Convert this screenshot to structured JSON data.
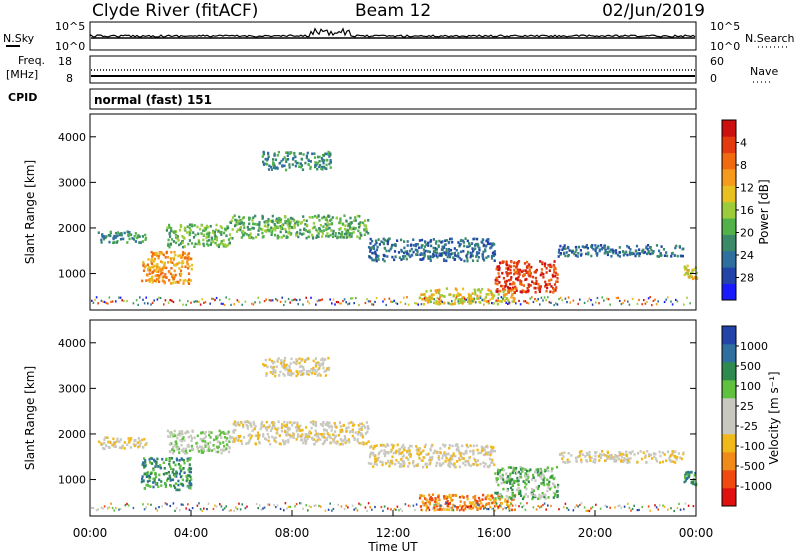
{
  "header": {
    "title": "Clyde River (fitACF)",
    "beam": "Beam 12",
    "date": "02/Jun/2019"
  },
  "panels": {
    "sky": {
      "left_label": "N.Sky",
      "left_ticks": [
        "10^5",
        "10^0"
      ],
      "right_ticks": [
        "10^5",
        "10^0"
      ],
      "right_label": "N.Search"
    },
    "freq": {
      "left_label_1": "Freq.",
      "left_label_2": "[MHz]",
      "left_ticks": [
        "18",
        "8"
      ],
      "right_ticks": [
        "60",
        "0"
      ],
      "right_label": "Nave"
    },
    "cpid": {
      "label": "CPID",
      "value": "normal (fast) 151"
    }
  },
  "colors": {
    "power": [
      "#1a1aff",
      "#2244a8",
      "#2f6fa0",
      "#3a8a6a",
      "#52b24a",
      "#9ccc3a",
      "#e8c020",
      "#f59a1a",
      "#f06a10",
      "#e43a10",
      "#cc1010"
    ],
    "velocity": [
      "#e01010",
      "#f04a10",
      "#f08a18",
      "#f0b818",
      "#c8c8c0",
      "#c8c8c0",
      "#60c040",
      "#2f8a50",
      "#2f6fa0",
      "#2244a8"
    ]
  },
  "chart_data": [
    {
      "type": "heatmap",
      "name_hint": "power-panel",
      "ylabel": "Slant Range [km]",
      "yticks": [
        "1000",
        "2000",
        "3000",
        "4000"
      ],
      "ylim": [
        200,
        4500
      ],
      "xlim": [
        0,
        24
      ],
      "colorbar_label": "Power [dB]",
      "colorbar_ticks": [
        "4",
        "8",
        "12",
        "16",
        "20",
        "24",
        "28"
      ],
      "regions": [
        {
          "x0": 0.3,
          "x1": 2.2,
          "y0": 1700,
          "y1": 1950,
          "level": 3
        },
        {
          "x0": 2.0,
          "x1": 4.0,
          "y0": 800,
          "y1": 1500,
          "level": 7
        },
        {
          "x0": 3.0,
          "x1": 5.5,
          "y0": 1600,
          "y1": 2100,
          "level": 4
        },
        {
          "x0": 5.5,
          "x1": 11.0,
          "y0": 1800,
          "y1": 2300,
          "level": 4
        },
        {
          "x0": 6.8,
          "x1": 9.5,
          "y0": 3300,
          "y1": 3700,
          "level": 3
        },
        {
          "x0": 11.0,
          "x1": 16.0,
          "y0": 1300,
          "y1": 1800,
          "level": 2
        },
        {
          "x0": 13.0,
          "x1": 16.8,
          "y0": 350,
          "y1": 700,
          "level": 6
        },
        {
          "x0": 16.0,
          "x1": 18.5,
          "y0": 600,
          "y1": 1300,
          "level": 9
        },
        {
          "x0": 18.5,
          "x1": 23.5,
          "y0": 1400,
          "y1": 1650,
          "level": 2
        },
        {
          "x0": 23.5,
          "x1": 24.0,
          "y0": 900,
          "y1": 1200,
          "level": 6
        }
      ]
    },
    {
      "type": "heatmap",
      "name_hint": "velocity-panel",
      "ylabel": "Slant Range [km]",
      "yticks": [
        "1000",
        "2000",
        "3000",
        "4000"
      ],
      "ylim": [
        200,
        4500
      ],
      "xlim": [
        0,
        24
      ],
      "colorbar_label": "Velocity [m s⁻¹]",
      "colorbar_ticks": [
        "1000",
        "500",
        "100",
        "25",
        "-25",
        "-100",
        "-500",
        "-1000"
      ],
      "xlabel": "Time UT",
      "xticks": [
        "00:00",
        "04:00",
        "08:00",
        "12:00",
        "16:00",
        "20:00",
        "00:00"
      ],
      "regions": [
        {
          "x0": 0.3,
          "x1": 2.2,
          "y0": 1700,
          "y1": 1950,
          "level": 4
        },
        {
          "x0": 2.0,
          "x1": 4.0,
          "y0": 800,
          "y1": 1500,
          "level": 7
        },
        {
          "x0": 3.0,
          "x1": 5.5,
          "y0": 1600,
          "y1": 2100,
          "level": 5
        },
        {
          "x0": 5.5,
          "x1": 11.0,
          "y0": 1800,
          "y1": 2300,
          "level": 4
        },
        {
          "x0": 6.8,
          "x1": 9.5,
          "y0": 3300,
          "y1": 3700,
          "level": 4
        },
        {
          "x0": 11.0,
          "x1": 16.0,
          "y0": 1300,
          "y1": 1800,
          "level": 4
        },
        {
          "x0": 13.0,
          "x1": 16.8,
          "y0": 350,
          "y1": 700,
          "level": 2
        },
        {
          "x0": 16.0,
          "x1": 18.5,
          "y0": 600,
          "y1": 1300,
          "level": 6
        },
        {
          "x0": 18.5,
          "x1": 23.5,
          "y0": 1400,
          "y1": 1650,
          "level": 4
        },
        {
          "x0": 23.5,
          "x1": 24.0,
          "y0": 900,
          "y1": 1200,
          "level": 7
        }
      ]
    }
  ]
}
